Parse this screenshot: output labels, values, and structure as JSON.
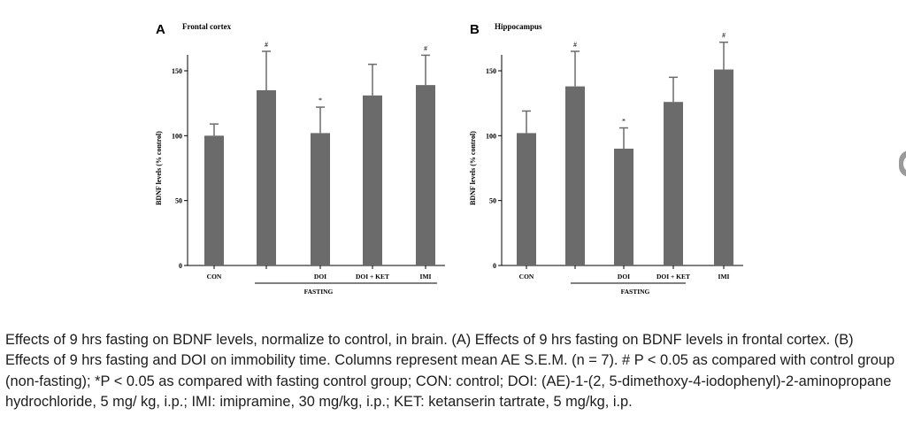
{
  "figure": {
    "caption": "Effects of 9 hrs fasting on BDNF levels, normalize to control, in brain. (A) Effects of 9 hrs fasting on BDNF levels in frontal cortex. (B) Effects of 9 hrs fasting and DOI on immobility time. Columns represent mean AE S.E.M. (n = 7). # P < 0.05 as compared with control group (non-fasting); *P < 0.05 as compared with fasting control group; CON: control; DOI: (AE)-1-(2, 5-dimethoxy-4-iodophenyl)-2-aminopropane hydrochloride, 5 mg/ kg, i.p.; IMI: imipramine, 30 mg/kg, i.p.; KET: ketanserin tartrate, 5 mg/kg, i.p.",
    "bar_color": "#6b6b6b",
    "axis_color": "#000000"
  },
  "chart_data": [
    {
      "type": "bar",
      "panel_letter": "A",
      "title": "Frontal cortex",
      "ylabel": "BDNF levels (% control)",
      "xlabel": "",
      "ylim": [
        0,
        150
      ],
      "yticks": [
        0,
        50,
        100,
        150
      ],
      "x_tick_labels": [
        "CON",
        "",
        "DOI",
        "DOI + KET",
        "IMI"
      ],
      "group_label": "FASTING",
      "values": [
        100,
        135,
        102,
        131,
        139
      ],
      "error": [
        9,
        30,
        20,
        24,
        23
      ],
      "markers": [
        "",
        "#",
        "*",
        "",
        "#"
      ]
    },
    {
      "type": "bar",
      "panel_letter": "B",
      "title": "Hippocampus",
      "ylabel": "BDNF levels (% control)",
      "xlabel": "",
      "ylim": [
        0,
        150
      ],
      "yticks": [
        0,
        50,
        100,
        150
      ],
      "x_tick_labels": [
        "CON",
        "",
        "DOI",
        "DOI + KET",
        "IMI"
      ],
      "group_label": "FASTING",
      "values": [
        102,
        138,
        90,
        126,
        151
      ],
      "error": [
        17,
        27,
        16,
        19,
        21
      ],
      "markers": [
        "",
        "#",
        "*",
        "",
        "#"
      ]
    }
  ]
}
